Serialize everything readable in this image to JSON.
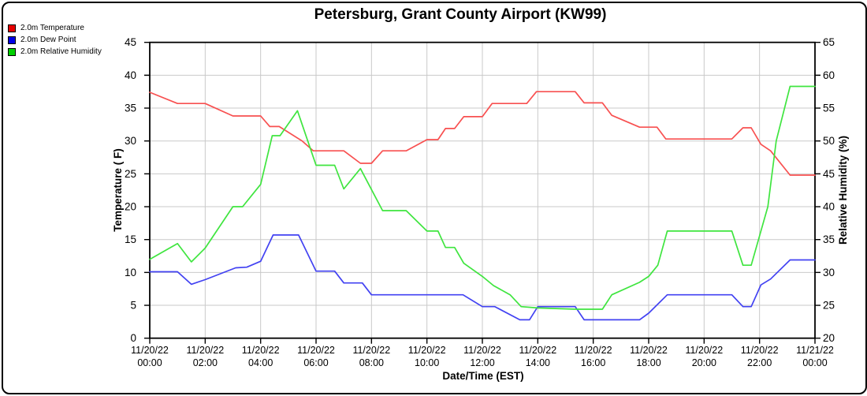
{
  "chart_data": {
    "type": "line",
    "title": "Petersburg, Grant County Airport (KW99)",
    "xlabel": "Date/Time (EST)",
    "ylabel_left": "Temperature ( F)",
    "ylabel_right": "Relative Humidity (%)",
    "grid": true,
    "legend_position": "top-left",
    "x_axis": {
      "unit": "hours_EST",
      "min": 0,
      "max": 24,
      "tick_interval_hours": 2,
      "tick_labels": [
        {
          "date": "11/20/22",
          "time": "00:00"
        },
        {
          "date": "11/20/22",
          "time": "02:00"
        },
        {
          "date": "11/20/22",
          "time": "04:00"
        },
        {
          "date": "11/20/22",
          "time": "06:00"
        },
        {
          "date": "11/20/22",
          "time": "08:00"
        },
        {
          "date": "11/20/22",
          "time": "10:00"
        },
        {
          "date": "11/20/22",
          "time": "12:00"
        },
        {
          "date": "11/20/22",
          "time": "14:00"
        },
        {
          "date": "11/20/22",
          "time": "16:00"
        },
        {
          "date": "11/20/22",
          "time": "18:00"
        },
        {
          "date": "11/20/22",
          "time": "20:00"
        },
        {
          "date": "11/20/22",
          "time": "22:00"
        },
        {
          "date": "11/21/22",
          "time": "00:00"
        }
      ]
    },
    "y_left": {
      "label": "Temperature ( F)",
      "min": 0,
      "max": 45,
      "ticks": [
        0,
        5,
        10,
        15,
        20,
        25,
        30,
        35,
        40,
        45
      ]
    },
    "y_right": {
      "label": "Relative Humidity (%)",
      "min": 20,
      "max": 65,
      "ticks": [
        20,
        25,
        30,
        35,
        40,
        45,
        50,
        55,
        60,
        65
      ]
    },
    "colors": {
      "grid": "#c9c9c9",
      "axis": "#000000"
    },
    "series": [
      {
        "name": "2.0m Temperature",
        "axis": "left",
        "color": "#f85050",
        "legend_color": "#e60000",
        "points": [
          [
            0,
            37.4
          ],
          [
            1,
            35.7
          ],
          [
            2,
            35.7
          ],
          [
            3,
            33.8
          ],
          [
            4,
            33.8
          ],
          [
            4.33,
            32.2
          ],
          [
            4.67,
            32.2
          ],
          [
            5.5,
            30.0
          ],
          [
            5.9,
            28.5
          ],
          [
            7,
            28.5
          ],
          [
            7.6,
            26.6
          ],
          [
            8,
            26.6
          ],
          [
            8.4,
            28.5
          ],
          [
            9.25,
            28.5
          ],
          [
            10,
            30.2
          ],
          [
            10.4,
            30.2
          ],
          [
            10.67,
            31.9
          ],
          [
            11,
            31.9
          ],
          [
            11.33,
            33.7
          ],
          [
            12,
            33.7
          ],
          [
            12.35,
            35.7
          ],
          [
            13.6,
            35.7
          ],
          [
            13.95,
            37.5
          ],
          [
            15.35,
            37.5
          ],
          [
            15.67,
            35.8
          ],
          [
            16.33,
            35.8
          ],
          [
            16.67,
            33.9
          ],
          [
            17.67,
            32.1
          ],
          [
            18.3,
            32.1
          ],
          [
            18.62,
            30.3
          ],
          [
            21,
            30.3
          ],
          [
            21.4,
            32.0
          ],
          [
            21.7,
            32.0
          ],
          [
            22.05,
            29.5
          ],
          [
            22.4,
            28.5
          ],
          [
            23.1,
            24.8
          ],
          [
            24,
            24.8
          ]
        ]
      },
      {
        "name": "2.0m Dew Point",
        "axis": "left",
        "color": "#4242f2",
        "legend_color": "#0000e6",
        "points": [
          [
            0,
            10.1
          ],
          [
            1,
            10.1
          ],
          [
            1.5,
            8.2
          ],
          [
            2,
            8.9
          ],
          [
            3.1,
            10.7
          ],
          [
            3.5,
            10.8
          ],
          [
            4,
            11.7
          ],
          [
            4.45,
            15.7
          ],
          [
            5.37,
            15.7
          ],
          [
            6,
            10.2
          ],
          [
            6.67,
            10.2
          ],
          [
            7,
            8.4
          ],
          [
            7.67,
            8.4
          ],
          [
            8,
            6.6
          ],
          [
            11.3,
            6.6
          ],
          [
            12,
            4.8
          ],
          [
            12.45,
            4.8
          ],
          [
            13.35,
            2.8
          ],
          [
            13.7,
            2.8
          ],
          [
            14,
            4.8
          ],
          [
            15.35,
            4.8
          ],
          [
            15.67,
            2.8
          ],
          [
            17.67,
            2.8
          ],
          [
            18,
            3.8
          ],
          [
            18.67,
            6.6
          ],
          [
            21,
            6.6
          ],
          [
            21.4,
            4.8
          ],
          [
            21.7,
            4.8
          ],
          [
            22.05,
            8.1
          ],
          [
            22.4,
            9.0
          ],
          [
            23.1,
            11.9
          ],
          [
            24,
            11.9
          ]
        ]
      },
      {
        "name": "2.0m Relative Humidity",
        "axis": "right",
        "color": "#3fe53f",
        "legend_color": "#00d000",
        "points": [
          [
            0,
            32.0
          ],
          [
            1,
            34.4
          ],
          [
            1.5,
            31.6
          ],
          [
            2,
            33.7
          ],
          [
            3,
            40.0
          ],
          [
            3.35,
            40.0
          ],
          [
            4,
            43.4
          ],
          [
            4.42,
            50.8
          ],
          [
            4.7,
            50.8
          ],
          [
            5.33,
            54.6
          ],
          [
            6,
            46.3
          ],
          [
            6.67,
            46.3
          ],
          [
            7,
            42.7
          ],
          [
            7.6,
            45.8
          ],
          [
            8.4,
            39.4
          ],
          [
            9.25,
            39.4
          ],
          [
            10,
            36.3
          ],
          [
            10.4,
            36.3
          ],
          [
            10.67,
            33.8
          ],
          [
            11,
            33.8
          ],
          [
            11.33,
            31.4
          ],
          [
            12,
            29.4
          ],
          [
            12.4,
            28.0
          ],
          [
            13,
            26.6
          ],
          [
            13.4,
            24.8
          ],
          [
            14,
            24.6
          ],
          [
            15.4,
            24.4
          ],
          [
            16.33,
            24.4
          ],
          [
            16.67,
            26.6
          ],
          [
            17.67,
            28.5
          ],
          [
            18,
            29.4
          ],
          [
            18.33,
            31.1
          ],
          [
            18.67,
            36.3
          ],
          [
            21,
            36.3
          ],
          [
            21.4,
            31.1
          ],
          [
            21.7,
            31.1
          ],
          [
            22.3,
            40.0
          ],
          [
            22.6,
            50.0
          ],
          [
            23.1,
            58.3
          ],
          [
            24,
            58.3
          ]
        ]
      }
    ]
  }
}
